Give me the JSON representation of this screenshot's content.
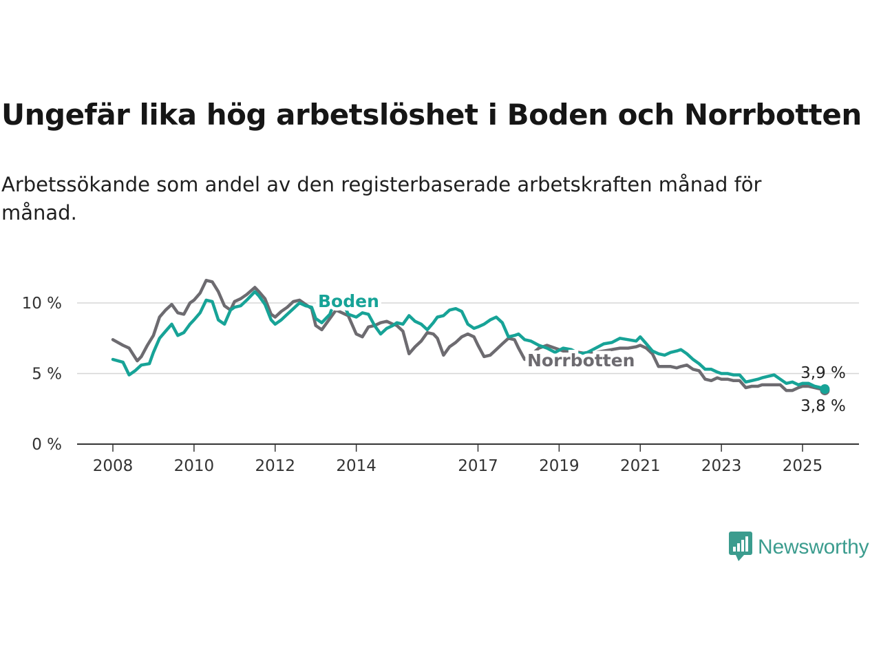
{
  "title": "Ungefär lika hög arbetslöshet i Boden och Norrbotten",
  "subtitle": "Arbetssökande som andel av den registerbaserade arbetskraften månad för månad.",
  "brand": {
    "name": "Newsworthy",
    "icon": "newsworthy-logo-icon",
    "color": "#3b9c8e"
  },
  "chart_data": {
    "type": "line",
    "title": "Ungefär lika hög arbetslöshet i Boden och Norrbotten",
    "xlim": [
      2008,
      2025.9
    ],
    "ylim": [
      0,
      12
    ],
    "y_ticks": [
      0,
      5,
      10
    ],
    "y_tick_labels": [
      "0 %",
      "5 %",
      "10 %"
    ],
    "x_ticks": [
      2008,
      2010,
      2012,
      2014,
      2017,
      2019,
      2021,
      2023,
      2025
    ],
    "x_tick_labels": [
      "2008",
      "2010",
      "2012",
      "2014",
      "2017",
      "2019",
      "2021",
      "2023",
      "2025"
    ],
    "grid": true,
    "series": [
      {
        "name": "Norrbotten",
        "color": "#6d6b70",
        "end_label": "3,8 %",
        "x": [
          2008.0,
          2008.25,
          2008.4,
          2008.6,
          2008.7,
          2008.85,
          2009.0,
          2009.15,
          2009.3,
          2009.45,
          2009.6,
          2009.75,
          2009.9,
          2010.0,
          2010.15,
          2010.3,
          2010.45,
          2010.6,
          2010.75,
          2010.9,
          2011.0,
          2011.15,
          2011.3,
          2011.5,
          2011.6,
          2011.75,
          2011.9,
          2012.0,
          2012.15,
          2012.3,
          2012.45,
          2012.6,
          2012.75,
          2012.9,
          2013.0,
          2013.15,
          2013.35,
          2013.5,
          2013.65,
          2013.8,
          2014.0,
          2014.15,
          2014.3,
          2014.45,
          2014.6,
          2014.75,
          2014.9,
          2015.0,
          2015.15,
          2015.3,
          2015.45,
          2015.6,
          2015.75,
          2015.9,
          2016.0,
          2016.15,
          2016.3,
          2016.45,
          2016.6,
          2016.75,
          2016.9,
          2017.0,
          2017.15,
          2017.3,
          2017.45,
          2017.6,
          2017.75,
          2017.9,
          2018.0,
          2018.15,
          2018.3,
          2018.5,
          2018.7,
          2018.9,
          2019.1,
          2019.3,
          2019.5,
          2019.7,
          2019.9,
          2020.1,
          2020.3,
          2020.5,
          2020.7,
          2020.9,
          2021.0,
          2021.15,
          2021.3,
          2021.45,
          2021.6,
          2021.75,
          2021.9,
          2022.0,
          2022.15,
          2022.3,
          2022.45,
          2022.6,
          2022.75,
          2022.9,
          2023.0,
          2023.15,
          2023.3,
          2023.45,
          2023.6,
          2023.75,
          2023.9,
          2024.0,
          2024.15,
          2024.3,
          2024.45,
          2024.6,
          2024.75,
          2024.9,
          2025.0,
          2025.15,
          2025.3,
          2025.45,
          2025.55
        ],
        "y": [
          7.4,
          7.0,
          6.8,
          5.9,
          6.2,
          7.0,
          7.7,
          9.0,
          9.5,
          9.9,
          9.3,
          9.2,
          10.0,
          10.2,
          10.7,
          11.6,
          11.5,
          10.8,
          9.8,
          9.5,
          10.1,
          10.3,
          10.6,
          11.1,
          10.8,
          10.3,
          9.2,
          9.0,
          9.4,
          9.7,
          10.1,
          10.2,
          9.9,
          9.6,
          8.4,
          8.1,
          8.9,
          9.5,
          9.3,
          9.1,
          7.8,
          7.6,
          8.3,
          8.4,
          8.6,
          8.7,
          8.5,
          8.4,
          8.0,
          6.4,
          6.9,
          7.3,
          7.9,
          7.8,
          7.5,
          6.3,
          6.9,
          7.2,
          7.6,
          7.8,
          7.6,
          7.0,
          6.2,
          6.3,
          6.7,
          7.1,
          7.5,
          7.4,
          6.8,
          6.0,
          6.3,
          6.8,
          7.0,
          6.8,
          6.6,
          6.6,
          6.5,
          6.4,
          6.5,
          6.6,
          6.7,
          6.8,
          6.8,
          6.9,
          7.0,
          6.8,
          6.4,
          5.5,
          5.5,
          5.5,
          5.4,
          5.5,
          5.6,
          5.3,
          5.2,
          4.6,
          4.5,
          4.7,
          4.6,
          4.6,
          4.5,
          4.5,
          4.0,
          4.1,
          4.1,
          4.2,
          4.2,
          4.2,
          4.2,
          3.8,
          3.8,
          4.0,
          4.1,
          4.1,
          4.0,
          3.9,
          3.8
        ]
      },
      {
        "name": "Boden",
        "color": "#17a397",
        "end_label": "3,9 %",
        "x": [
          2008.0,
          2008.25,
          2008.4,
          2008.55,
          2008.7,
          2008.9,
          2009.0,
          2009.15,
          2009.3,
          2009.45,
          2009.6,
          2009.75,
          2009.9,
          2010.0,
          2010.15,
          2010.3,
          2010.45,
          2010.6,
          2010.75,
          2010.9,
          2011.0,
          2011.15,
          2011.3,
          2011.5,
          2011.6,
          2011.75,
          2011.9,
          2012.0,
          2012.15,
          2012.3,
          2012.45,
          2012.6,
          2012.75,
          2012.9,
          2013.0,
          2013.15,
          2013.35,
          2013.5,
          2013.65,
          2013.8,
          2014.0,
          2014.15,
          2014.3,
          2014.45,
          2014.6,
          2014.75,
          2014.9,
          2015.0,
          2015.15,
          2015.3,
          2015.45,
          2015.6,
          2015.75,
          2015.9,
          2016.0,
          2016.15,
          2016.3,
          2016.45,
          2016.6,
          2016.75,
          2016.9,
          2017.0,
          2017.15,
          2017.3,
          2017.45,
          2017.6,
          2017.75,
          2017.9,
          2018.0,
          2018.15,
          2018.3,
          2018.5,
          2018.7,
          2018.9,
          2019.1,
          2019.3,
          2019.5,
          2019.7,
          2019.9,
          2020.1,
          2020.3,
          2020.5,
          2020.7,
          2020.9,
          2021.0,
          2021.15,
          2021.3,
          2021.45,
          2021.6,
          2021.75,
          2021.9,
          2022.0,
          2022.15,
          2022.3,
          2022.45,
          2022.6,
          2022.75,
          2022.9,
          2023.0,
          2023.15,
          2023.3,
          2023.45,
          2023.6,
          2023.75,
          2023.9,
          2024.0,
          2024.15,
          2024.3,
          2024.45,
          2024.6,
          2024.75,
          2024.9,
          2025.0,
          2025.15,
          2025.3,
          2025.45,
          2025.55
        ],
        "y": [
          6.0,
          5.8,
          4.9,
          5.2,
          5.6,
          5.7,
          6.5,
          7.5,
          8.0,
          8.5,
          7.7,
          7.9,
          8.5,
          8.8,
          9.3,
          10.2,
          10.1,
          8.8,
          8.5,
          9.5,
          9.7,
          9.8,
          10.2,
          10.8,
          10.5,
          9.9,
          8.8,
          8.5,
          8.8,
          9.2,
          9.6,
          10.0,
          9.8,
          9.7,
          8.9,
          8.6,
          9.2,
          10.4,
          10.2,
          9.2,
          9.0,
          9.3,
          9.2,
          8.4,
          7.8,
          8.2,
          8.4,
          8.6,
          8.5,
          9.1,
          8.7,
          8.5,
          8.1,
          8.6,
          9.0,
          9.1,
          9.5,
          9.6,
          9.4,
          8.5,
          8.2,
          8.3,
          8.5,
          8.8,
          9.0,
          8.6,
          7.6,
          7.7,
          7.8,
          7.4,
          7.3,
          7.0,
          6.8,
          6.5,
          6.8,
          6.7,
          6.4,
          6.5,
          6.8,
          7.1,
          7.2,
          7.5,
          7.4,
          7.3,
          7.6,
          7.1,
          6.6,
          6.4,
          6.3,
          6.5,
          6.6,
          6.7,
          6.4,
          6.0,
          5.7,
          5.3,
          5.3,
          5.1,
          5.0,
          5.0,
          4.9,
          4.9,
          4.4,
          4.5,
          4.6,
          4.7,
          4.8,
          4.9,
          4.6,
          4.3,
          4.4,
          4.2,
          4.3,
          4.3,
          4.1,
          4.0,
          3.9
        ]
      }
    ]
  }
}
